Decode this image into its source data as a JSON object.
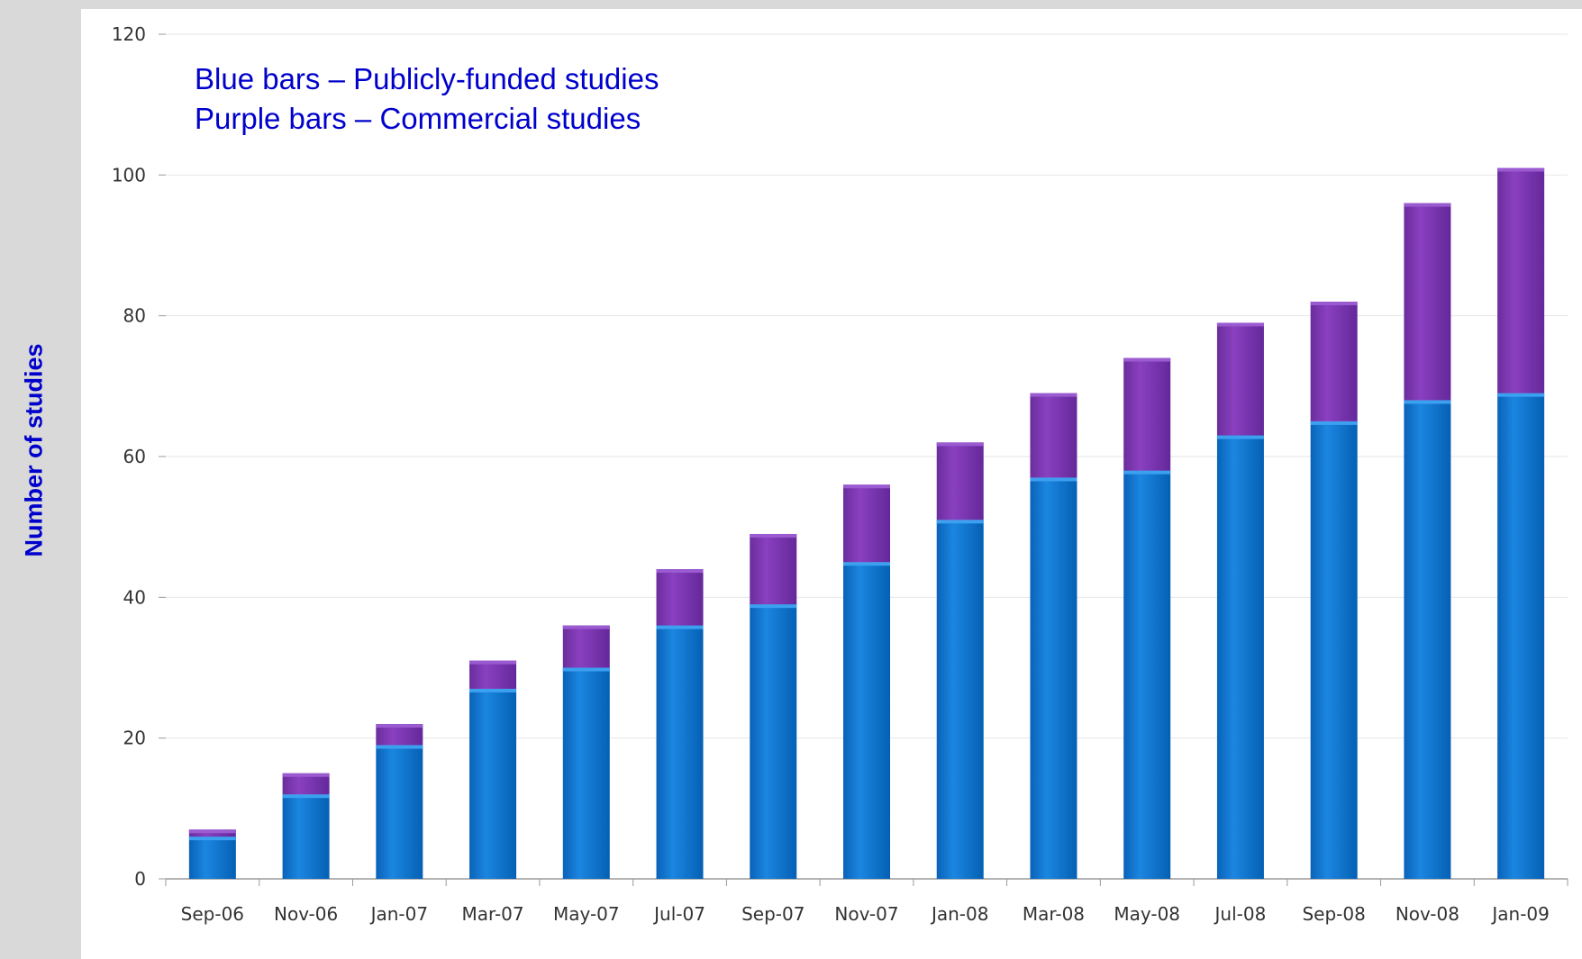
{
  "chart_data": {
    "type": "bar",
    "stacked": true,
    "title": "",
    "xlabel": "",
    "ylabel": "Number of studies",
    "ylim": [
      0,
      120
    ],
    "yticks": [
      0,
      20,
      40,
      60,
      80,
      100,
      120
    ],
    "grid": true,
    "categories": [
      "Sep-06",
      "Nov-06",
      "Jan-07",
      "Mar-07",
      "May-07",
      "Jul-07",
      "Sep-07",
      "Nov-07",
      "Jan-08",
      "Mar-08",
      "May-08",
      "Jul-08",
      "Sep-08",
      "Nov-08",
      "Jan-09"
    ],
    "series": [
      {
        "color": "#0570c9",
        "values": [
          6,
          12,
          19,
          27,
          30,
          36,
          39,
          45,
          51,
          57,
          58,
          63,
          65,
          68,
          69
        ]
      },
      {
        "color": "#7030a0",
        "values": [
          1,
          3,
          3,
          4,
          6,
          8,
          10,
          11,
          11,
          12,
          16,
          16,
          17,
          28,
          32
        ]
      }
    ],
    "annotations": [
      "Blue bars – Publicly-funded studies",
      "Purple bars – Commercial studies"
    ]
  },
  "colors": {
    "background": "#d9d9d9",
    "panel": "#ffffff",
    "label_text": "#0000cc",
    "gridline": "#e6e6e6"
  }
}
